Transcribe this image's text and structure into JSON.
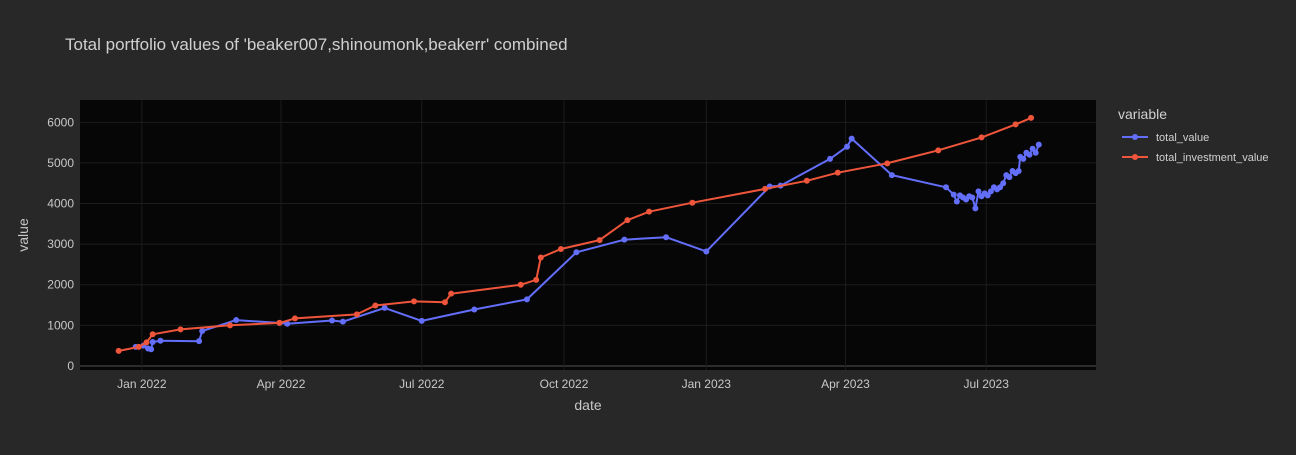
{
  "chart_data": {
    "type": "line",
    "title": "Total portfolio values of 'beaker007,shinoumonk,beakerr' combined",
    "xlabel": "date",
    "ylabel": "value",
    "x_ticks": [
      "Jan 2022",
      "Apr 2022",
      "Jul 2022",
      "Oct 2022",
      "Jan 2023",
      "Apr 2023",
      "Jul 2023"
    ],
    "x_tick_dates": [
      "2022-01-01",
      "2022-04-01",
      "2022-07-01",
      "2022-10-01",
      "2023-01-01",
      "2023-04-01",
      "2023-07-01"
    ],
    "y_ticks": [
      0,
      1000,
      2000,
      3000,
      4000,
      5000,
      6000
    ],
    "xlim": [
      "2021-11-22",
      "2023-09-10"
    ],
    "ylim": [
      -100,
      6550
    ],
    "grid": true,
    "legend": {
      "title": "variable",
      "position": "top-right"
    },
    "series": [
      {
        "name": "total_value",
        "color": "#636efa",
        "points": [
          [
            "2021-12-28",
            470
          ],
          [
            "2022-01-02",
            500
          ],
          [
            "2022-01-05",
            430
          ],
          [
            "2022-01-07",
            410
          ],
          [
            "2022-01-08",
            590
          ],
          [
            "2022-01-13",
            620
          ],
          [
            "2022-02-07",
            610
          ],
          [
            "2022-02-09",
            860
          ],
          [
            "2022-03-03",
            1130
          ],
          [
            "2022-03-31",
            1060
          ],
          [
            "2022-04-05",
            1040
          ],
          [
            "2022-05-04",
            1120
          ],
          [
            "2022-05-11",
            1090
          ],
          [
            "2022-06-07",
            1430
          ],
          [
            "2022-07-01",
            1110
          ],
          [
            "2022-08-04",
            1390
          ],
          [
            "2022-09-07",
            1640
          ],
          [
            "2022-10-09",
            2800
          ],
          [
            "2022-11-09",
            3110
          ],
          [
            "2022-12-06",
            3170
          ],
          [
            "2023-01-01",
            2820
          ],
          [
            "2023-02-11",
            4420
          ],
          [
            "2023-02-18",
            4440
          ],
          [
            "2023-03-22",
            5100
          ],
          [
            "2023-04-02",
            5400
          ],
          [
            "2023-04-05",
            5600
          ],
          [
            "2023-05-01",
            4700
          ],
          [
            "2023-06-05",
            4400
          ],
          [
            "2023-06-10",
            4220
          ],
          [
            "2023-06-12",
            4050
          ],
          [
            "2023-06-14",
            4200
          ],
          [
            "2023-06-16",
            4150
          ],
          [
            "2023-06-18",
            4100
          ],
          [
            "2023-06-20",
            4180
          ],
          [
            "2023-06-22",
            4150
          ],
          [
            "2023-06-24",
            3880
          ],
          [
            "2023-06-26",
            4300
          ],
          [
            "2023-06-28",
            4180
          ],
          [
            "2023-06-30",
            4250
          ],
          [
            "2023-07-02",
            4200
          ],
          [
            "2023-07-04",
            4300
          ],
          [
            "2023-07-06",
            4400
          ],
          [
            "2023-07-08",
            4350
          ],
          [
            "2023-07-10",
            4400
          ],
          [
            "2023-07-12",
            4500
          ],
          [
            "2023-07-14",
            4700
          ],
          [
            "2023-07-16",
            4650
          ],
          [
            "2023-07-18",
            4800
          ],
          [
            "2023-07-20",
            4750
          ],
          [
            "2023-07-22",
            4800
          ],
          [
            "2023-07-23",
            5150
          ],
          [
            "2023-07-25",
            5100
          ],
          [
            "2023-07-27",
            5250
          ],
          [
            "2023-07-29",
            5200
          ],
          [
            "2023-07-31",
            5350
          ],
          [
            "2023-08-02",
            5250
          ],
          [
            "2023-08-04",
            5450
          ]
        ]
      },
      {
        "name": "total_investment_value",
        "color": "#ef553b",
        "points": [
          [
            "2021-12-17",
            370
          ],
          [
            "2021-12-30",
            470
          ],
          [
            "2022-01-04",
            580
          ],
          [
            "2022-01-08",
            780
          ],
          [
            "2022-01-26",
            900
          ],
          [
            "2022-02-27",
            1000
          ],
          [
            "2022-03-31",
            1060
          ],
          [
            "2022-04-10",
            1170
          ],
          [
            "2022-05-20",
            1270
          ],
          [
            "2022-06-01",
            1490
          ],
          [
            "2022-06-26",
            1590
          ],
          [
            "2022-07-16",
            1570
          ],
          [
            "2022-07-20",
            1780
          ],
          [
            "2022-09-03",
            2000
          ],
          [
            "2022-09-13",
            2120
          ],
          [
            "2022-09-16",
            2670
          ],
          [
            "2022-09-29",
            2880
          ],
          [
            "2022-10-24",
            3100
          ],
          [
            "2022-11-11",
            3590
          ],
          [
            "2022-11-25",
            3800
          ],
          [
            "2022-12-23",
            4020
          ],
          [
            "2023-02-08",
            4360
          ],
          [
            "2023-03-07",
            4560
          ],
          [
            "2023-03-27",
            4760
          ],
          [
            "2023-04-28",
            4990
          ],
          [
            "2023-05-31",
            5310
          ],
          [
            "2023-06-28",
            5630
          ],
          [
            "2023-07-20",
            5950
          ],
          [
            "2023-07-30",
            6110
          ]
        ]
      }
    ]
  }
}
